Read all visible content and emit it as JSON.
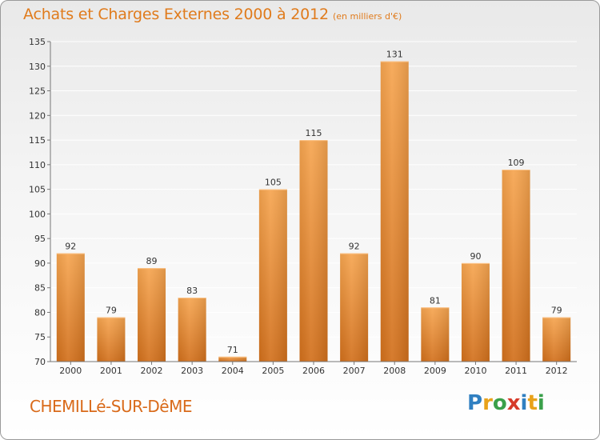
{
  "title": "Achats et Charges Externes 2000 à 2012",
  "subtitle": "(en milliers d'€)",
  "commune": "CHEMILLé-SUR-DêME",
  "logo": {
    "letters": [
      {
        "char": "P",
        "color": "#2f7fc1"
      },
      {
        "char": "r",
        "color": "#e8a21a"
      },
      {
        "char": "o",
        "color": "#3aa04a"
      },
      {
        "char": "x",
        "color": "#d63b2a"
      },
      {
        "char": "i",
        "color": "#2f7fc1"
      },
      {
        "char": "t",
        "color": "#e8a21a"
      },
      {
        "char": "i",
        "color": "#3aa04a"
      }
    ]
  },
  "colors": {
    "title": "#e07b1c",
    "bar_top": "#f6a550",
    "bar_bottom": "#d2701c",
    "grid": "#ffffff",
    "axis_text": "#333333"
  },
  "chart_data": {
    "type": "bar",
    "categories": [
      "2000",
      "2001",
      "2002",
      "2003",
      "2004",
      "2005",
      "2006",
      "2007",
      "2008",
      "2009",
      "2010",
      "2011",
      "2012"
    ],
    "values": [
      92,
      79,
      89,
      83,
      71,
      105,
      115,
      92,
      131,
      81,
      90,
      109,
      79
    ],
    "ylim": [
      70,
      135
    ],
    "yticks": [
      70,
      75,
      80,
      85,
      90,
      95,
      100,
      105,
      110,
      115,
      120,
      125,
      130,
      135
    ],
    "grid": true,
    "xlabel": "",
    "ylabel": ""
  }
}
